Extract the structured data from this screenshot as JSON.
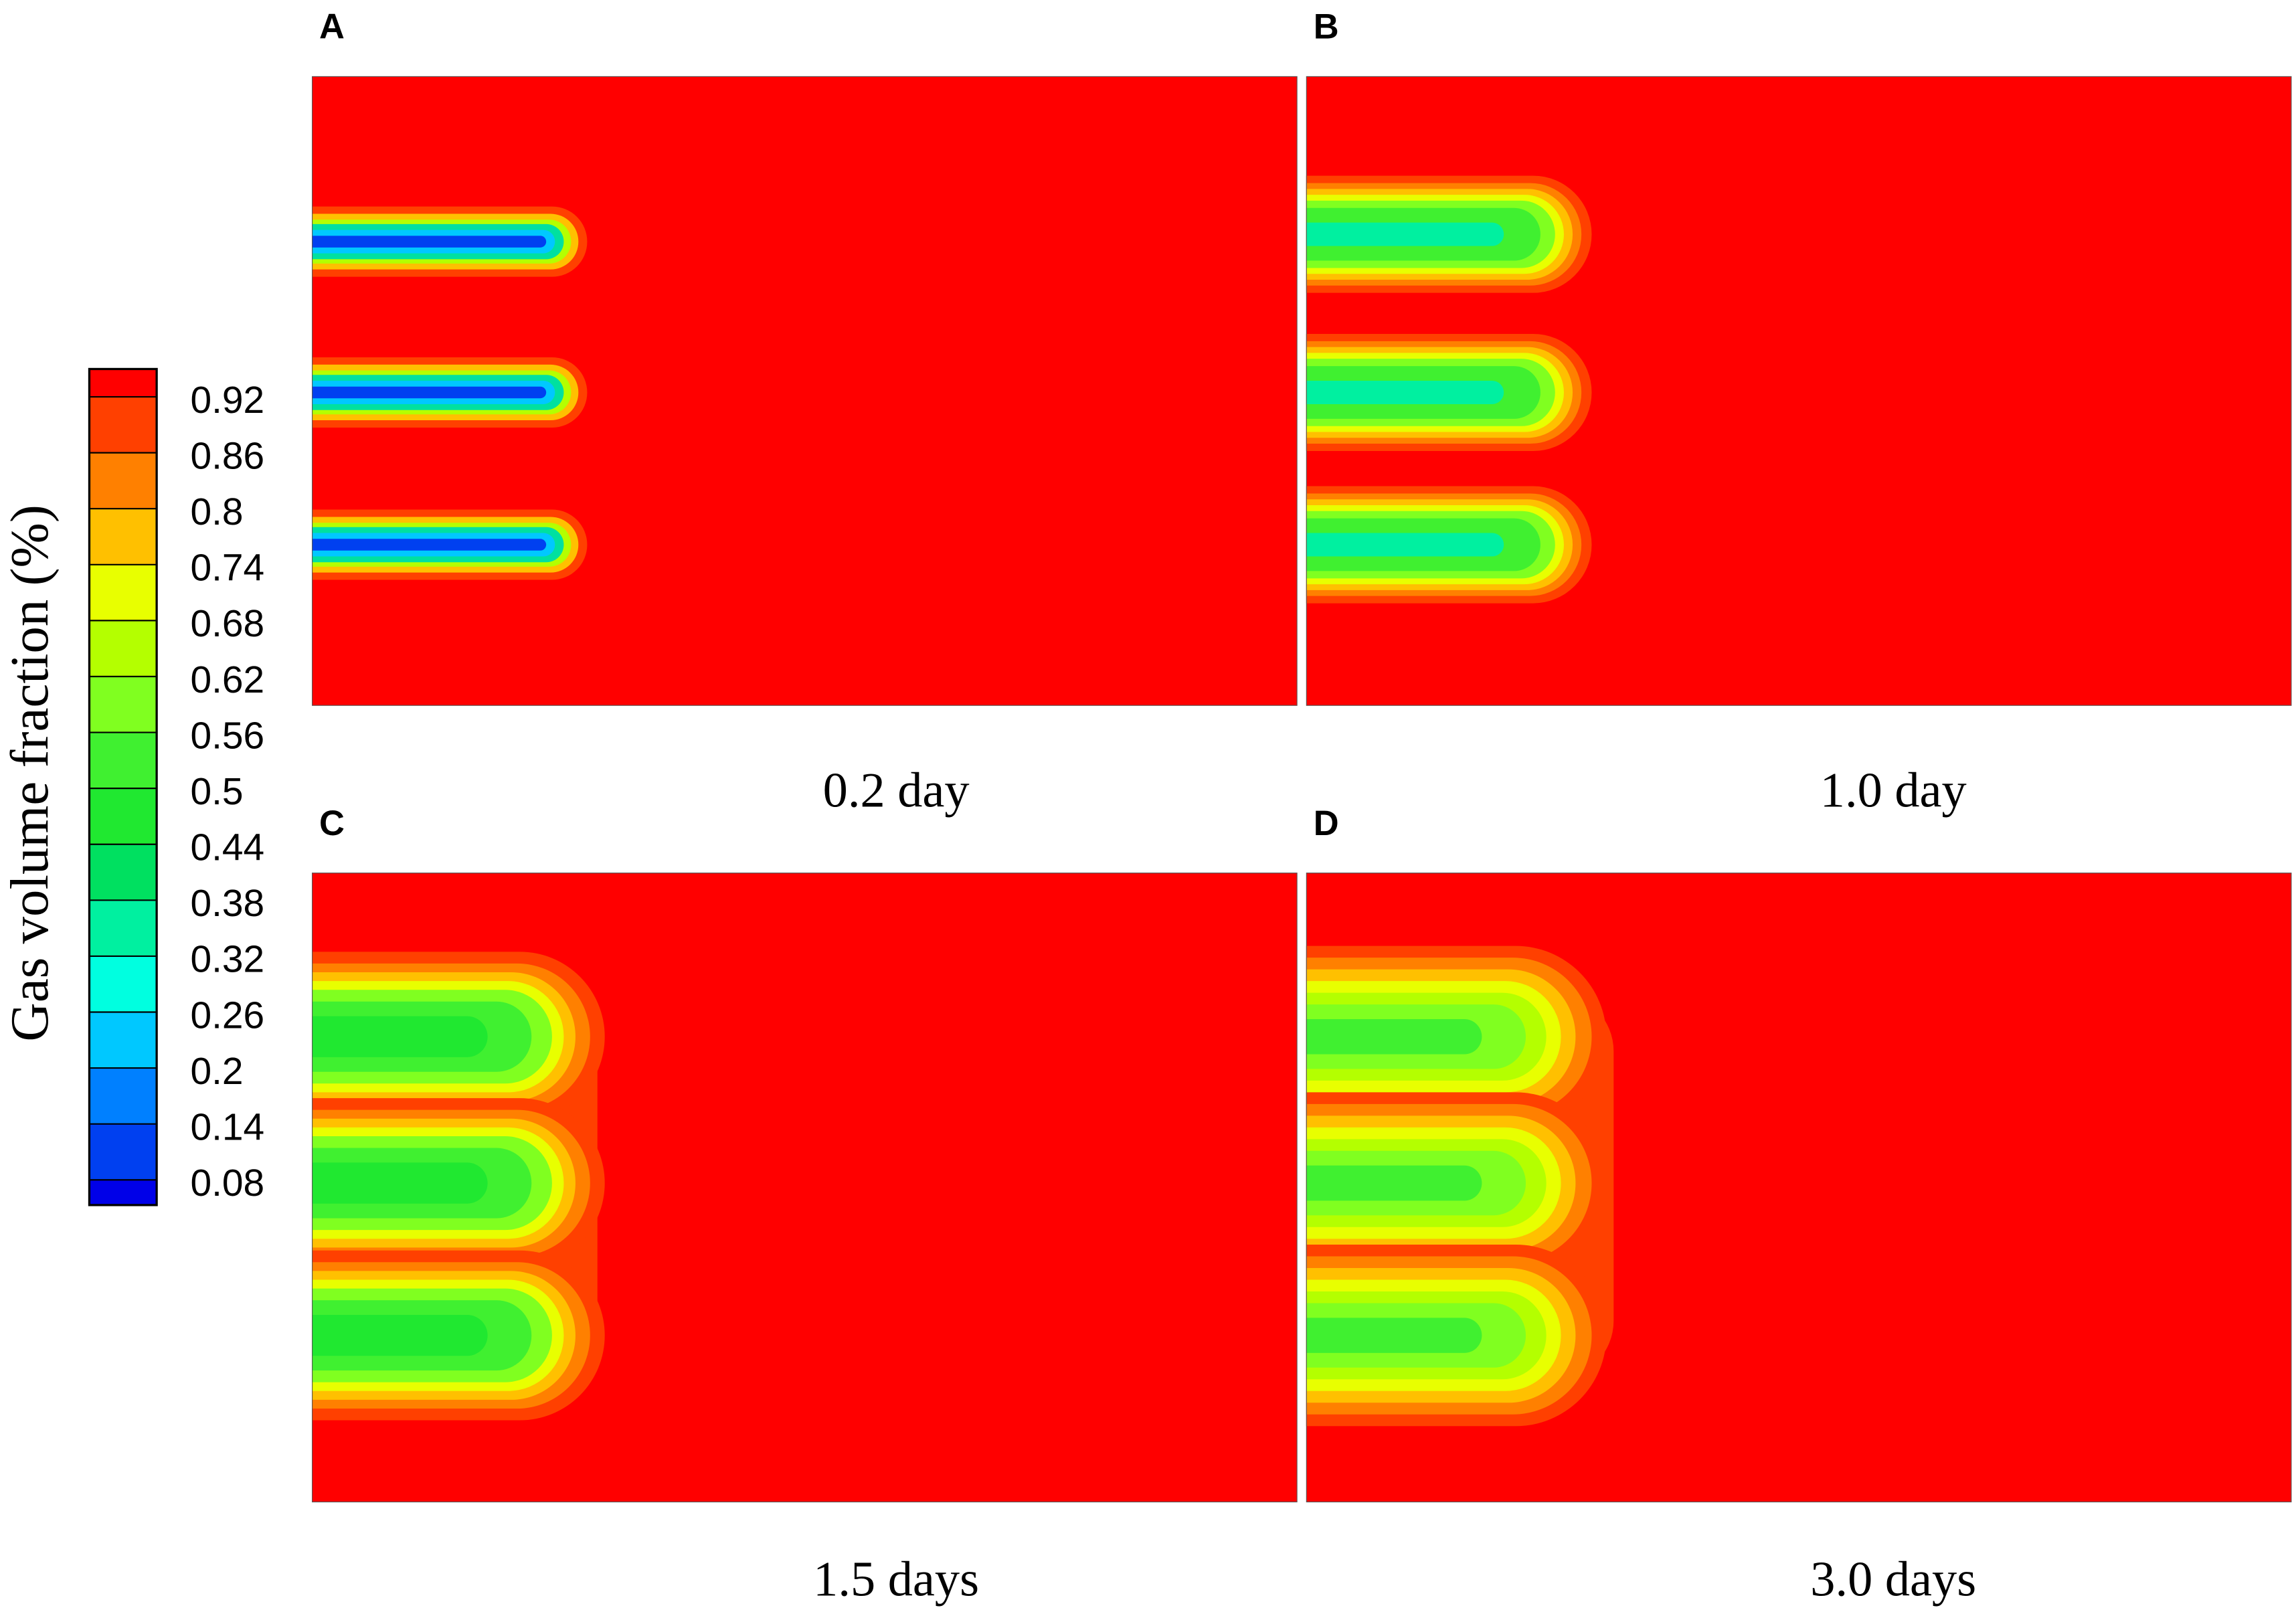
{
  "colorbar": {
    "label": "Gas volume fraction (%)",
    "ticks": [
      0.92,
      0.86,
      0.8,
      0.74,
      0.68,
      0.62,
      0.56,
      0.5,
      0.44,
      0.38,
      0.32,
      0.26,
      0.2,
      0.14,
      0.08
    ],
    "colors": [
      "#ff0000",
      "#ff4000",
      "#ff8000",
      "#ffc000",
      "#e8ff00",
      "#b4ff00",
      "#80ff20",
      "#40f030",
      "#20e830",
      "#00e060",
      "#00f0a0",
      "#00ffe0",
      "#00c8ff",
      "#0080ff",
      "#0040f0",
      "#0000e8"
    ]
  },
  "panels": [
    {
      "label": "A",
      "caption": "0.2 day"
    },
    {
      "label": "B",
      "caption": "1.0 day"
    },
    {
      "label": "C",
      "caption": "1.5 days"
    },
    {
      "label": "D",
      "caption": "3.0 days"
    }
  ]
}
